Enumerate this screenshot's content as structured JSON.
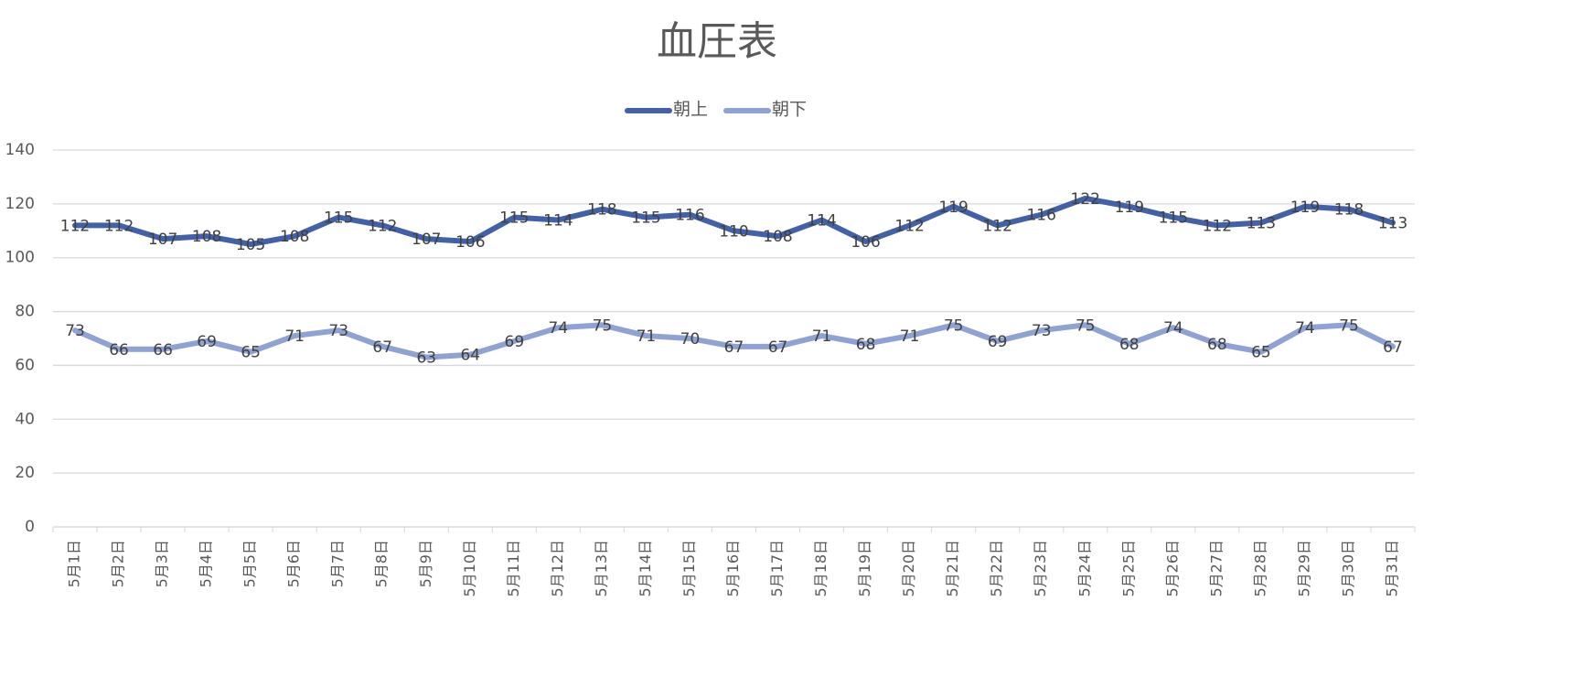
{
  "chart_data": {
    "type": "line",
    "title": "血圧表",
    "categories": [
      "5月1日",
      "5月2日",
      "5月3日",
      "5月4日",
      "5月5日",
      "5月6日",
      "5月7日",
      "5月8日",
      "5月9日",
      "5月10日",
      "5月11日",
      "5月12日",
      "5月13日",
      "5月14日",
      "5月15日",
      "5月16日",
      "5月17日",
      "5月18日",
      "5月19日",
      "5月20日",
      "5月21日",
      "5月22日",
      "5月23日",
      "5月24日",
      "5月25日",
      "5月26日",
      "5月27日",
      "5月28日",
      "5月29日",
      "5月30日",
      "5月31日"
    ],
    "series": [
      {
        "name": "朝上",
        "color": "#4161a8",
        "values": [
          112,
          112,
          107,
          108,
          105,
          108,
          115,
          112,
          107,
          106,
          115,
          114,
          118,
          115,
          116,
          110,
          108,
          114,
          106,
          112,
          119,
          112,
          116,
          122,
          119,
          115,
          112,
          113,
          119,
          118,
          113
        ]
      },
      {
        "name": "朝下",
        "color": "#8fa2d4",
        "values": [
          73,
          66,
          66,
          69,
          65,
          71,
          73,
          67,
          63,
          64,
          69,
          74,
          75,
          71,
          70,
          67,
          67,
          71,
          68,
          71,
          75,
          69,
          73,
          75,
          68,
          74,
          68,
          65,
          74,
          75,
          67
        ]
      }
    ],
    "ylim": [
      0,
      140
    ],
    "yticks": [
      0,
      20,
      40,
      60,
      80,
      100,
      120,
      140
    ],
    "grid": true,
    "legend": "top",
    "data_labels": true
  }
}
